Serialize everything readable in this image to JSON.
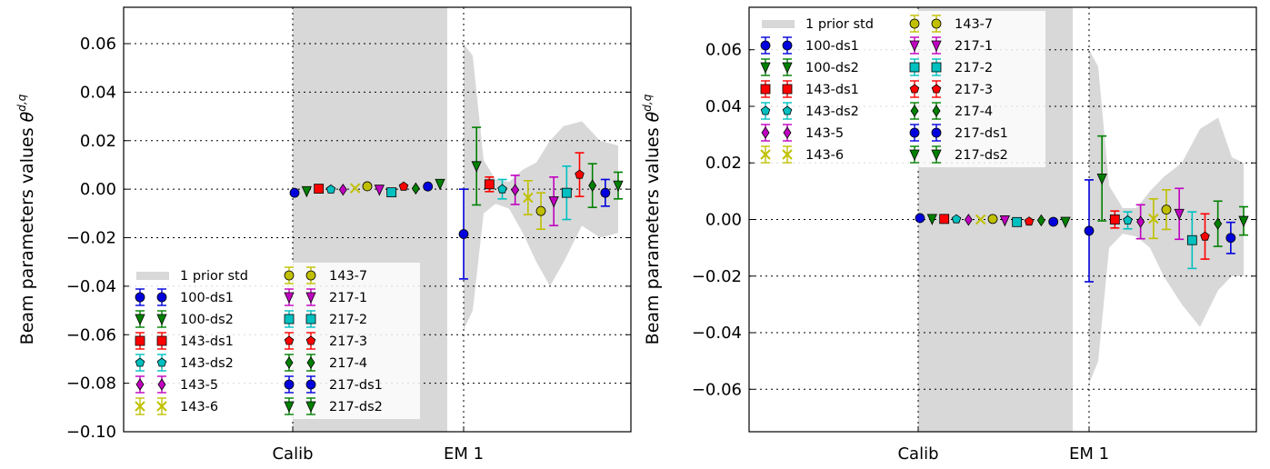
{
  "colors": {
    "100-ds1": "#0000dd",
    "100-ds2": "#008000",
    "143-ds1": "#ff0000",
    "143-ds2": "#00c0c0",
    "143-5": "#c000c0",
    "143-6": "#c0c000",
    "143-7": "#c0c000",
    "217-1": "#c000c0",
    "217-2": "#00c0c0",
    "217-3": "#ff0000",
    "217-4": "#008000",
    "217-ds1": "#0000dd",
    "217-ds2": "#008000",
    "prior": "#d8d8d8"
  },
  "chart_data": [
    {
      "type": "scatter",
      "ylabel": "Beam parameters values",
      "ylabel_symbol": "θ",
      "ylabel_superscript": "d,q",
      "x_tick_labels": [
        "Calib",
        "EM 1"
      ],
      "ylim": [
        -0.1,
        0.075
      ],
      "y_ticks": [
        0.06,
        0.04,
        0.02,
        0.0,
        -0.02,
        -0.04,
        -0.06,
        -0.08,
        -0.1
      ],
      "y_tick_labels": [
        "0.06",
        "0.04",
        "0.02",
        "0.00",
        "−0.02",
        "−0.04",
        "−0.06",
        "−0.08",
        "−0.10"
      ],
      "grid": true,
      "legend_position": "bottom-left",
      "prior_label": "1 prior std",
      "series_names": [
        "100-ds1",
        "100-ds2",
        "143-ds1",
        "143-ds2",
        "143-5",
        "143-6",
        "143-7",
        "217-1",
        "217-2",
        "217-3",
        "217-4",
        "217-ds1",
        "217-ds2"
      ],
      "calib": [
        {
          "series": "100-ds1",
          "y": -0.0015
        },
        {
          "series": "100-ds2",
          "y": -0.0008
        },
        {
          "series": "143-ds1",
          "y": 0.0002
        },
        {
          "series": "143-ds2",
          "y": -0.0001
        },
        {
          "series": "143-5",
          "y": -0.0002
        },
        {
          "series": "143-6",
          "y": 0.0004
        },
        {
          "series": "143-7",
          "y": 0.0012
        },
        {
          "series": "217-1",
          "y": -0.0002
        },
        {
          "series": "217-2",
          "y": -0.0013
        },
        {
          "series": "217-3",
          "y": 0.0011
        },
        {
          "series": "217-4",
          "y": 0.0003
        },
        {
          "series": "217-ds1",
          "y": 0.0011
        },
        {
          "series": "217-ds2",
          "y": 0.0022
        }
      ],
      "em1": [
        {
          "series": "100-ds1",
          "y": -0.0185,
          "err": 0.0185
        },
        {
          "series": "100-ds2",
          "y": 0.0095,
          "err": 0.016
        },
        {
          "series": "143-ds1",
          "y": 0.002,
          "err": 0.003
        },
        {
          "series": "143-ds2",
          "y": 0.0,
          "err": 0.004
        },
        {
          "series": "143-5",
          "y": -0.0003,
          "err": 0.006
        },
        {
          "series": "143-6",
          "y": -0.0035,
          "err": 0.007
        },
        {
          "series": "143-7",
          "y": -0.009,
          "err": 0.0075
        },
        {
          "series": "217-1",
          "y": -0.005,
          "err": 0.01
        },
        {
          "series": "217-2",
          "y": -0.0015,
          "err": 0.011
        },
        {
          "series": "217-3",
          "y": 0.006,
          "err": 0.009
        },
        {
          "series": "217-4",
          "y": 0.0015,
          "err": 0.009
        },
        {
          "series": "217-ds1",
          "y": -0.0015,
          "err": 0.0055
        },
        {
          "series": "217-ds2",
          "y": 0.0015,
          "err": 0.0055
        }
      ]
    },
    {
      "type": "scatter",
      "ylabel": "Beam parameters values",
      "ylabel_symbol": "θ",
      "ylabel_superscript": "d,q",
      "x_tick_labels": [
        "Calib",
        "EM 1"
      ],
      "ylim": [
        -0.075,
        0.075
      ],
      "y_ticks": [
        0.06,
        0.04,
        0.02,
        0.0,
        -0.02,
        -0.04,
        -0.06
      ],
      "y_tick_labels": [
        "0.06",
        "0.04",
        "0.02",
        "0.00",
        "−0.02",
        "−0.04",
        "−0.06"
      ],
      "grid": true,
      "legend_position": "top-left",
      "prior_label": "1 prior std",
      "series_names": [
        "100-ds1",
        "100-ds2",
        "143-ds1",
        "143-ds2",
        "143-5",
        "143-6",
        "143-7",
        "217-1",
        "217-2",
        "217-3",
        "217-4",
        "217-ds1",
        "217-ds2"
      ],
      "calib": [
        {
          "series": "100-ds1",
          "y": 0.0005
        },
        {
          "series": "100-ds2",
          "y": 0.0002
        },
        {
          "series": "143-ds1",
          "y": 0.0002
        },
        {
          "series": "143-ds2",
          "y": 0.0001
        },
        {
          "series": "143-5",
          "y": -0.0001
        },
        {
          "series": "143-6",
          "y": 0.0
        },
        {
          "series": "143-7",
          "y": 0.0002
        },
        {
          "series": "217-1",
          "y": -0.0003
        },
        {
          "series": "217-2",
          "y": -0.0009
        },
        {
          "series": "217-3",
          "y": -0.0007
        },
        {
          "series": "217-4",
          "y": -0.0003
        },
        {
          "series": "217-ds1",
          "y": -0.0008
        },
        {
          "series": "217-ds2",
          "y": -0.0008
        }
      ],
      "em1": [
        {
          "series": "100-ds1",
          "y": -0.004,
          "err": 0.018
        },
        {
          "series": "100-ds2",
          "y": 0.0145,
          "err": 0.015
        },
        {
          "series": "143-ds1",
          "y": 0.0,
          "err": 0.003
        },
        {
          "series": "143-ds2",
          "y": -0.0003,
          "err": 0.003
        },
        {
          "series": "143-5",
          "y": -0.0008,
          "err": 0.006
        },
        {
          "series": "143-6",
          "y": 0.0003,
          "err": 0.007
        },
        {
          "series": "143-7",
          "y": 0.0035,
          "err": 0.007
        },
        {
          "series": "217-1",
          "y": 0.002,
          "err": 0.009
        },
        {
          "series": "217-2",
          "y": -0.0073,
          "err": 0.01
        },
        {
          "series": "217-3",
          "y": -0.006,
          "err": 0.008
        },
        {
          "series": "217-4",
          "y": -0.0015,
          "err": 0.008
        },
        {
          "series": "217-ds1",
          "y": -0.0065,
          "err": 0.0055
        },
        {
          "series": "217-ds2",
          "y": -0.0005,
          "err": 0.005
        }
      ]
    }
  ]
}
